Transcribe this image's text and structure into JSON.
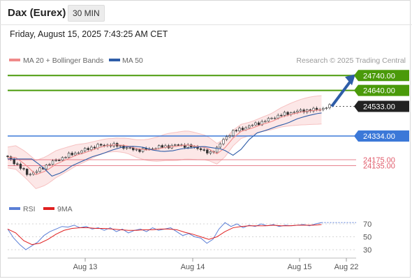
{
  "header": {
    "instrument": "Dax (Eurex)",
    "timeframe": "30 MIN"
  },
  "timestamp": "Friday, August 15, 2025 7:43:25 AM CET",
  "copyright": "Research © 2025 Trading Central",
  "colors": {
    "bollinger": "#f08a8a",
    "ma50": "#2e5da8",
    "resistance": "#4a9a0a",
    "support": "#3b78d8",
    "pivot": "#e05a6a",
    "current": "#222222",
    "up_candle": "#2f8a3a",
    "down_candle": "#c0392b",
    "rsi": "#5b7fd6",
    "rsi_ma": "#e02020"
  },
  "chart_data": [
    {
      "type": "candlestick",
      "legend": [
        "MA 20 + Bollinger Bands",
        "MA 50"
      ],
      "y_levels": [
        {
          "value": "24740.00",
          "kind": "resistance"
        },
        {
          "value": "24640.00",
          "kind": "resistance"
        },
        {
          "value": "24533.00",
          "kind": "current"
        },
        {
          "value": "24334.00",
          "kind": "support"
        },
        {
          "value": "24175.00",
          "kind": "pivot"
        },
        {
          "value": "24135.00",
          "kind": "pivot"
        }
      ],
      "ylim": [
        23920,
        24840
      ],
      "x_ticks": [
        "Aug 13",
        "Aug 14",
        "Aug 15",
        "Aug 22"
      ],
      "close_path": [
        [
          0,
          24190
        ],
        [
          5,
          24140
        ],
        [
          10,
          24075
        ],
        [
          15,
          24100
        ],
        [
          20,
          24145
        ],
        [
          25,
          24175
        ],
        [
          30,
          24205
        ],
        [
          35,
          24225
        ],
        [
          40,
          24250
        ],
        [
          45,
          24270
        ],
        [
          50,
          24275
        ],
        [
          55,
          24270
        ],
        [
          60,
          24250
        ],
        [
          65,
          24240
        ],
        [
          70,
          24245
        ],
        [
          75,
          24260
        ],
        [
          80,
          24265
        ],
        [
          85,
          24275
        ],
        [
          90,
          24265
        ],
        [
          95,
          24255
        ],
        [
          100,
          24215
        ],
        [
          104,
          24255
        ],
        [
          108,
          24320
        ],
        [
          112,
          24365
        ],
        [
          117,
          24385
        ],
        [
          122,
          24410
        ],
        [
          127,
          24430
        ],
        [
          132,
          24460
        ],
        [
          137,
          24480
        ],
        [
          142,
          24495
        ],
        [
          147,
          24505
        ],
        [
          152,
          24510
        ],
        [
          157,
          24520
        ],
        [
          160,
          24533
        ]
      ],
      "projection": {
        "from": "24533.00",
        "to": "24740.00"
      }
    },
    {
      "type": "line",
      "legend": [
        "RSI",
        "9MA"
      ],
      "ylim": [
        20,
        80
      ],
      "y_ticks": [
        70,
        50,
        30
      ],
      "rsi": [
        [
          0,
          62
        ],
        [
          3,
          48
        ],
        [
          6,
          38
        ],
        [
          9,
          30
        ],
        [
          12,
          36
        ],
        [
          15,
          42
        ],
        [
          18,
          52
        ],
        [
          21,
          58
        ],
        [
          24,
          62
        ],
        [
          27,
          66
        ],
        [
          30,
          65
        ],
        [
          33,
          68
        ],
        [
          36,
          64
        ],
        [
          39,
          66
        ],
        [
          42,
          62
        ],
        [
          45,
          64
        ],
        [
          48,
          60
        ],
        [
          51,
          64
        ],
        [
          54,
          58
        ],
        [
          57,
          62
        ],
        [
          60,
          56
        ],
        [
          63,
          60
        ],
        [
          66,
          62
        ],
        [
          69,
          58
        ],
        [
          72,
          64
        ],
        [
          75,
          60
        ],
        [
          78,
          62
        ],
        [
          81,
          64
        ],
        [
          84,
          58
        ],
        [
          87,
          52
        ],
        [
          90,
          55
        ],
        [
          93,
          50
        ],
        [
          96,
          48
        ],
        [
          99,
          40
        ],
        [
          102,
          46
        ],
        [
          105,
          62
        ],
        [
          108,
          72
        ],
        [
          111,
          66
        ],
        [
          114,
          70
        ],
        [
          117,
          64
        ],
        [
          120,
          68
        ],
        [
          123,
          66
        ],
        [
          126,
          70
        ],
        [
          129,
          67
        ],
        [
          132,
          69
        ],
        [
          135,
          66
        ],
        [
          138,
          68
        ],
        [
          141,
          67
        ],
        [
          144,
          68
        ],
        [
          147,
          69
        ],
        [
          150,
          67
        ],
        [
          153,
          70
        ],
        [
          156,
          72
        ]
      ],
      "ma9": [
        [
          0,
          62
        ],
        [
          4,
          56
        ],
        [
          8,
          44
        ],
        [
          12,
          38
        ],
        [
          16,
          40
        ],
        [
          20,
          46
        ],
        [
          24,
          54
        ],
        [
          28,
          60
        ],
        [
          32,
          63
        ],
        [
          36,
          64
        ],
        [
          40,
          64
        ],
        [
          44,
          63
        ],
        [
          48,
          63
        ],
        [
          52,
          62
        ],
        [
          56,
          61
        ],
        [
          60,
          60
        ],
        [
          64,
          60
        ],
        [
          68,
          61
        ],
        [
          72,
          61
        ],
        [
          76,
          62
        ],
        [
          80,
          62
        ],
        [
          84,
          61
        ],
        [
          88,
          57
        ],
        [
          92,
          54
        ],
        [
          96,
          50
        ],
        [
          100,
          46
        ],
        [
          104,
          50
        ],
        [
          108,
          58
        ],
        [
          112,
          64
        ],
        [
          116,
          66
        ],
        [
          120,
          67
        ],
        [
          124,
          67
        ],
        [
          128,
          67
        ],
        [
          132,
          68
        ],
        [
          136,
          67
        ],
        [
          140,
          67
        ],
        [
          144,
          68
        ],
        [
          148,
          68
        ],
        [
          152,
          68
        ],
        [
          156,
          69
        ]
      ]
    }
  ]
}
